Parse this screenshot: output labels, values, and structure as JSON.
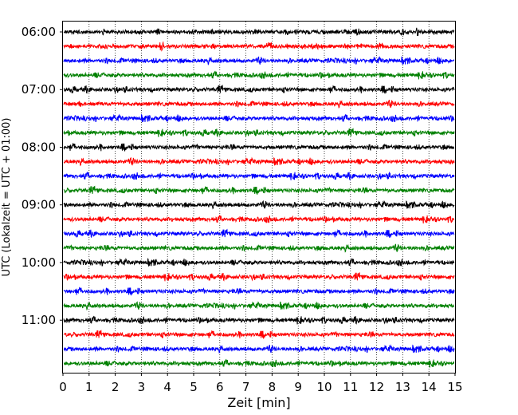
{
  "chart_data": {
    "type": "line",
    "title": "",
    "xlabel": "Zeit  [min]",
    "ylabel": "UTC (Lokalzeit = UTC + 01:00)",
    "xlim": [
      0,
      15
    ],
    "x_ticks": [
      "0",
      "1",
      "2",
      "3",
      "4",
      "5",
      "6",
      "7",
      "8",
      "9",
      "10",
      "11",
      "12",
      "13",
      "14",
      "15"
    ],
    "y_ticks": [
      "06:00",
      "07:00",
      "08:00",
      "09:00",
      "10:00",
      "11:00"
    ],
    "grid": "vertical dotted",
    "legend": "none",
    "trace_interval_min": 15,
    "trace_start_times": [
      "06:00",
      "06:15",
      "06:30",
      "06:45",
      "07:00",
      "07:15",
      "07:30",
      "07:45",
      "08:00",
      "08:15",
      "08:30",
      "08:45",
      "09:00",
      "09:15",
      "09:30",
      "09:45",
      "10:00",
      "10:15",
      "10:30",
      "10:45",
      "11:00",
      "11:15",
      "11:30",
      "11:45"
    ],
    "trace_colors": [
      "#000000",
      "#ff0000",
      "#0000ff",
      "#008000"
    ]
  }
}
